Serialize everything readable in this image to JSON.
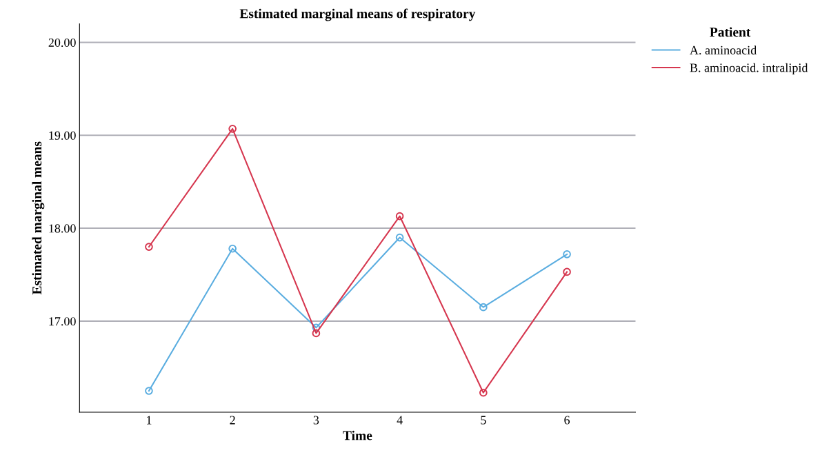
{
  "chart_data": {
    "type": "line",
    "title": "Estimated marginal means of respiratory",
    "xlabel": "Time",
    "ylabel": "Estimated marginal means",
    "legend_title": "Patient",
    "x": [
      1,
      2,
      3,
      4,
      5,
      6
    ],
    "series": [
      {
        "name": "A. aminoacid",
        "color": "#5aade0",
        "values": [
          16.25,
          17.78,
          16.93,
          17.9,
          17.15,
          17.72
        ]
      },
      {
        "name": "B. aminoacid. intralipid",
        "color": "#d6374f",
        "values": [
          17.8,
          19.07,
          16.87,
          18.13,
          16.23,
          17.53
        ]
      }
    ],
    "xlim": [
      0.17,
      6.82
    ],
    "xticks": [
      1,
      2,
      3,
      4,
      5,
      6
    ],
    "ylim": [
      16.02,
      20.2
    ],
    "yticks": [
      {
        "value": 17,
        "label": "17.00"
      },
      {
        "value": 18,
        "label": "18.00"
      },
      {
        "value": 19,
        "label": "19.00"
      },
      {
        "value": 20,
        "label": "20.00"
      }
    ],
    "grid": "y",
    "legend": "top right",
    "marker": "circle",
    "line_style": "solid"
  }
}
